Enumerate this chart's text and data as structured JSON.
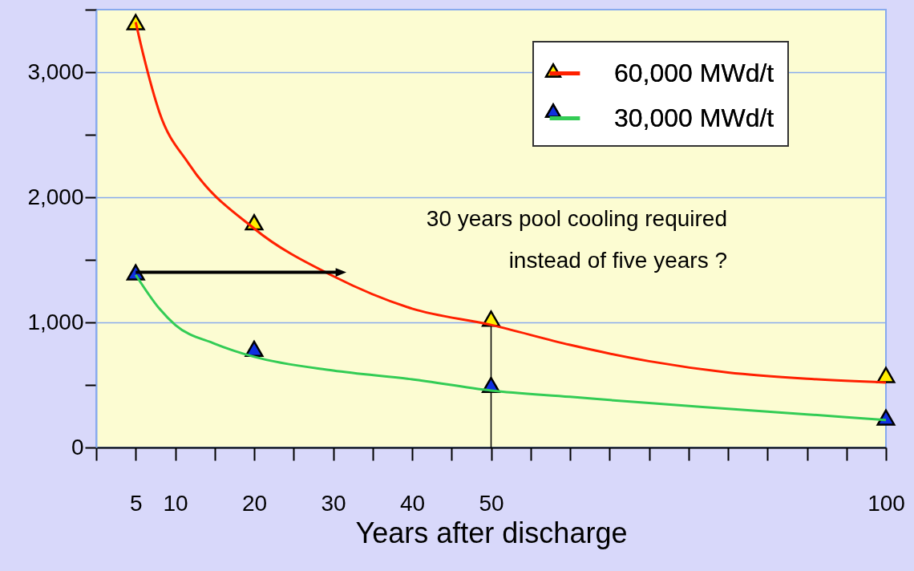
{
  "chart_data": {
    "type": "line",
    "xlabel": "Years after discharge",
    "xlim": [
      0,
      100
    ],
    "xticks": [
      {
        "value": 0,
        "label": null
      },
      5,
      10,
      {
        "value": 15,
        "label": null
      },
      20,
      {
        "value": 25,
        "label": null
      },
      30,
      {
        "value": 35,
        "label": null
      },
      40,
      {
        "value": 45,
        "label": null
      },
      50,
      {
        "value": 55,
        "label": null
      },
      {
        "value": 60,
        "label": null
      },
      {
        "value": 65,
        "label": null
      },
      {
        "value": 70,
        "label": null
      },
      {
        "value": 75,
        "label": null
      },
      {
        "value": 80,
        "label": null
      },
      {
        "value": 85,
        "label": null
      },
      {
        "value": 90,
        "label": null
      },
      {
        "value": 95,
        "label": null
      },
      100
    ],
    "ylim": [
      0,
      3500
    ],
    "yticks": [
      0,
      {
        "value": 500,
        "label": null
      },
      {
        "value": 1000,
        "label": "1,000"
      },
      {
        "value": 1500,
        "label": null
      },
      {
        "value": 2000,
        "label": "2,000"
      },
      {
        "value": 2500,
        "label": null
      },
      {
        "value": 3000,
        "label": "3,000"
      },
      {
        "value": 3500,
        "label": null
      }
    ],
    "grid": "y",
    "legend": "top right",
    "line_style": "solid",
    "series": [
      {
        "name": "60,000 MWd/t",
        "color": "#ff2000",
        "x": [
          5,
          6,
          8,
          11.7,
          20,
          30,
          40,
          50,
          60,
          70,
          80,
          90,
          100
        ],
        "values": [
          3400,
          3130,
          2680,
          2270,
          1750,
          1370,
          1110,
          980,
          820,
          690,
          600,
          550,
          520
        ]
      },
      {
        "name": "30,000 MWd/t",
        "color": "#33cc55",
        "x": [
          5,
          8,
          10,
          15,
          20,
          30,
          40,
          50,
          60,
          70,
          80,
          90,
          100
        ],
        "values": [
          1380,
          1110,
          980,
          830,
          725,
          615,
          545,
          455,
          405,
          355,
          310,
          265,
          220
        ]
      },
      {
        "type": "scatter",
        "marker": "triangle",
        "color": "#ffee00",
        "x": [
          5,
          20,
          50,
          100
        ],
        "values": [
          3400,
          1800,
          1030,
          580
        ]
      },
      {
        "type": "scatter",
        "marker": "triangle",
        "color": "#1030e0",
        "x": [
          5,
          20,
          50,
          100
        ],
        "values": [
          1400,
          790,
          500,
          240
        ]
      },
      {
        "type": "line",
        "color": "#000000",
        "x": [
          5,
          31
        ],
        "values": [
          1400,
          1400
        ]
      }
    ],
    "ref_lines": [
      {
        "axis": "x",
        "value": 50,
        "label": null,
        "color": "#000000"
      }
    ],
    "annotations": [
      "30 years pool cooling required\ninstead of five years ?"
    ]
  }
}
